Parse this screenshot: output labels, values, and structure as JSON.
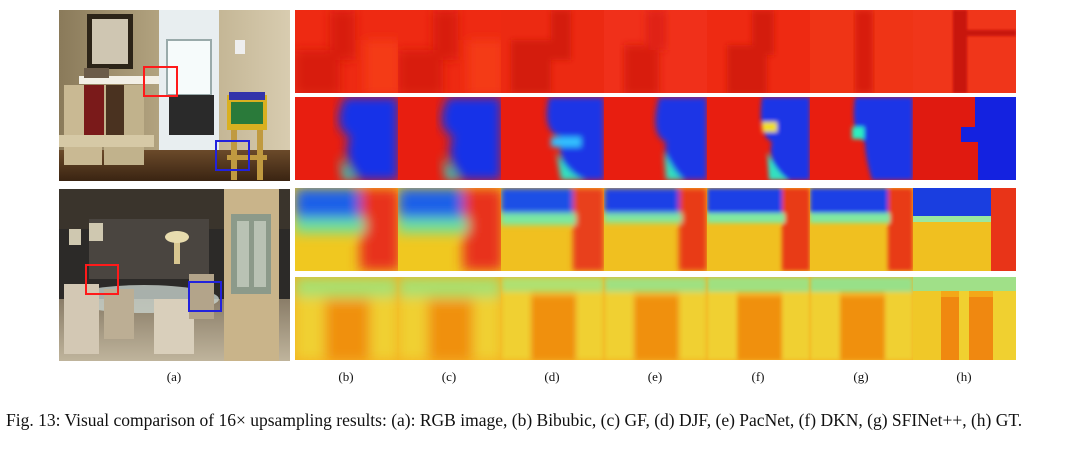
{
  "figure": {
    "labels": [
      "(a)",
      "(b)",
      "(c)",
      "(d)",
      "(e)",
      "(f)",
      "(g)",
      "(h)"
    ],
    "caption": "Fig. 13: Visual comparison of 16× upsampling results: (a): RGB image, (b) Bibubic, (c) GF, (d) DJF, (e) PacNet, (f) DKN, (g) SFINet++, (h) GT.",
    "roi_colors": {
      "red": "#ff1a1a",
      "blue": "#2222dd"
    }
  }
}
